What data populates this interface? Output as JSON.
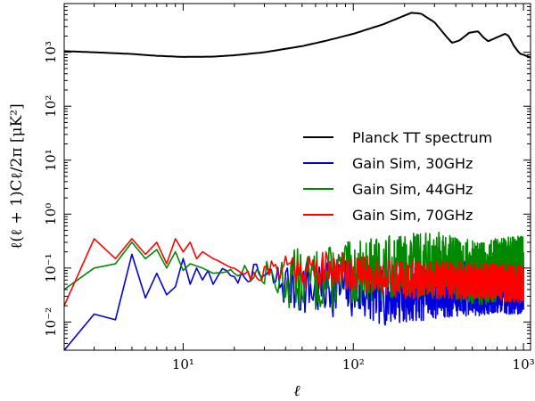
{
  "chart_data": {
    "type": "line",
    "title": "",
    "xlabel": "ℓ",
    "ylabel": "ℓ(ℓ + 1)Cℓ/2π [μK²]",
    "xscale": "log",
    "yscale": "log",
    "xlim": [
      2,
      1100
    ],
    "ylim": [
      0.003,
      8000
    ],
    "x_ticks": [
      {
        "value": 10,
        "label": "10¹"
      },
      {
        "value": 100,
        "label": "10²"
      },
      {
        "value": 1000,
        "label": "10³"
      }
    ],
    "y_ticks": [
      {
        "value": 0.01,
        "label": "10⁻²"
      },
      {
        "value": 0.1,
        "label": "10⁻¹"
      },
      {
        "value": 1,
        "label": "10⁰"
      },
      {
        "value": 10,
        "label": "10¹"
      },
      {
        "value": 100,
        "label": "10²"
      },
      {
        "value": 1000,
        "label": "10³"
      }
    ],
    "legend_position": "center-right",
    "series": [
      {
        "name": "Planck TT spectrum",
        "color": "#000000",
        "kind": "smooth",
        "points": [
          [
            2,
            1050
          ],
          [
            3,
            1000
          ],
          [
            5,
            930
          ],
          [
            7,
            860
          ],
          [
            10,
            820
          ],
          [
            15,
            830
          ],
          [
            20,
            880
          ],
          [
            30,
            1000
          ],
          [
            50,
            1300
          ],
          [
            70,
            1650
          ],
          [
            100,
            2200
          ],
          [
            150,
            3300
          ],
          [
            200,
            4800
          ],
          [
            220,
            5400
          ],
          [
            250,
            5200
          ],
          [
            300,
            3600
          ],
          [
            350,
            2000
          ],
          [
            380,
            1500
          ],
          [
            420,
            1650
          ],
          [
            480,
            2300
          ],
          [
            540,
            2450
          ],
          [
            580,
            1900
          ],
          [
            620,
            1600
          ],
          [
            700,
            1900
          ],
          [
            780,
            2200
          ],
          [
            820,
            2000
          ],
          [
            880,
            1300
          ],
          [
            950,
            950
          ],
          [
            1000,
            900
          ],
          [
            1100,
            800
          ]
        ]
      },
      {
        "name": "Gain Sim, 30GHz",
        "color": "#0000dd",
        "kind": "noisy",
        "points": [
          [
            2,
            0.003
          ],
          [
            3,
            0.014
          ],
          [
            4,
            0.011
          ],
          [
            5,
            0.18
          ],
          [
            6,
            0.028
          ],
          [
            7,
            0.08
          ],
          [
            8,
            0.032
          ],
          [
            9,
            0.045
          ],
          [
            10,
            0.15
          ],
          [
            11,
            0.05
          ],
          [
            12,
            0.1
          ],
          [
            13,
            0.06
          ],
          [
            14,
            0.09
          ],
          [
            15,
            0.05
          ],
          [
            17,
            0.1
          ],
          [
            20,
            0.06
          ],
          [
            25,
            0.08
          ],
          [
            30,
            0.07
          ],
          [
            40,
            0.05
          ],
          [
            60,
            0.04
          ],
          [
            80,
            0.045
          ],
          [
            100,
            0.04
          ],
          [
            150,
            0.03
          ],
          [
            200,
            0.035
          ],
          [
            300,
            0.04
          ],
          [
            500,
            0.045
          ],
          [
            700,
            0.05
          ],
          [
            1000,
            0.05
          ]
        ],
        "spread": 0.55,
        "seed": 7
      },
      {
        "name": "Gain Sim, 44GHz",
        "color": "#008800",
        "kind": "noisy",
        "points": [
          [
            2,
            0.04
          ],
          [
            3,
            0.1
          ],
          [
            4,
            0.12
          ],
          [
            5,
            0.3
          ],
          [
            6,
            0.15
          ],
          [
            7,
            0.22
          ],
          [
            8,
            0.1
          ],
          [
            9,
            0.2
          ],
          [
            10,
            0.09
          ],
          [
            11,
            0.12
          ],
          [
            13,
            0.1
          ],
          [
            15,
            0.08
          ],
          [
            20,
            0.09
          ],
          [
            25,
            0.08
          ],
          [
            30,
            0.07
          ],
          [
            40,
            0.06
          ],
          [
            60,
            0.06
          ],
          [
            80,
            0.07
          ],
          [
            100,
            0.08
          ],
          [
            150,
            0.1
          ],
          [
            200,
            0.11
          ],
          [
            300,
            0.12
          ],
          [
            400,
            0.1
          ],
          [
            500,
            0.08
          ],
          [
            700,
            0.09
          ],
          [
            1000,
            0.1
          ]
        ],
        "spread": 0.6,
        "seed": 13
      },
      {
        "name": "Gain Sim, 70GHz",
        "color": "#ff0000",
        "kind": "noisy",
        "points": [
          [
            2,
            0.02
          ],
          [
            3,
            0.35
          ],
          [
            4,
            0.15
          ],
          [
            5,
            0.35
          ],
          [
            6,
            0.18
          ],
          [
            7,
            0.3
          ],
          [
            8,
            0.12
          ],
          [
            9,
            0.35
          ],
          [
            10,
            0.2
          ],
          [
            11,
            0.3
          ],
          [
            12,
            0.15
          ],
          [
            13,
            0.2
          ],
          [
            15,
            0.15
          ],
          [
            20,
            0.1
          ],
          [
            25,
            0.07
          ],
          [
            30,
            0.08
          ],
          [
            40,
            0.12
          ],
          [
            50,
            0.1
          ],
          [
            60,
            0.09
          ],
          [
            80,
            0.1
          ],
          [
            100,
            0.08
          ],
          [
            150,
            0.07
          ],
          [
            200,
            0.06
          ],
          [
            300,
            0.06
          ],
          [
            500,
            0.06
          ],
          [
            700,
            0.055
          ],
          [
            1000,
            0.05
          ]
        ],
        "spread": 0.35,
        "seed": 21
      }
    ]
  }
}
